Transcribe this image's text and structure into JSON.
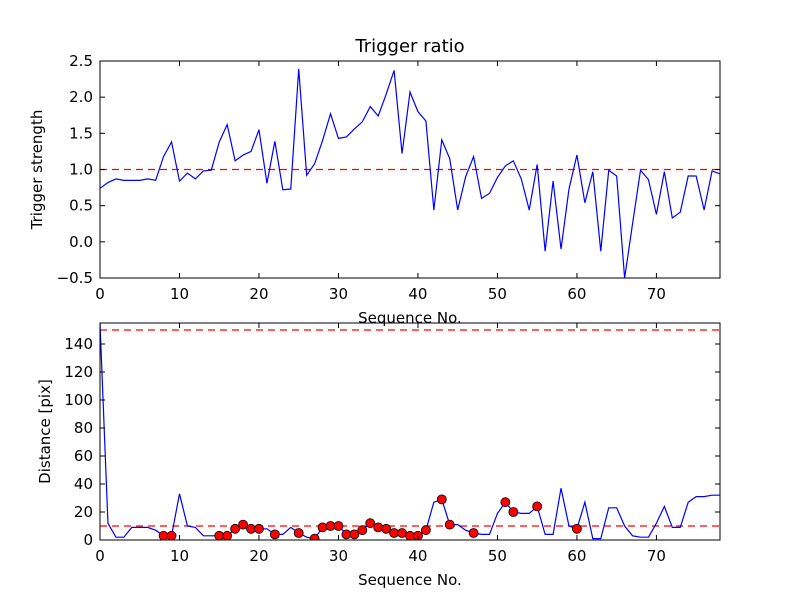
{
  "chart_data": [
    {
      "type": "line",
      "title": "Trigger ratio",
      "xlabel": "Sequence No.",
      "ylabel": "Trigger strength",
      "xlim": [
        0,
        78
      ],
      "ylim": [
        -0.5,
        2.5
      ],
      "xticks": [
        "0",
        "10",
        "20",
        "30",
        "40",
        "50",
        "60",
        "70"
      ],
      "yticks": [
        "2.5",
        "2.0",
        "1.5",
        "1.0",
        "0.5",
        "0.0",
        "−0.5"
      ],
      "threshold": 1.0,
      "colors": {
        "line": "#0000ff",
        "threshold": "#ff0000"
      },
      "series": [
        {
          "x": [
            0,
            1,
            2,
            3,
            4,
            5,
            6,
            7,
            8,
            9,
            10,
            11,
            12,
            13,
            14,
            15,
            16,
            17,
            18,
            19,
            20,
            21,
            22,
            23,
            24,
            25,
            26,
            27,
            28,
            29,
            30,
            31,
            32,
            33,
            34,
            35,
            36,
            37,
            38,
            39,
            40,
            41,
            42,
            43,
            44,
            45,
            46,
            47,
            48,
            49,
            50,
            51,
            52,
            53,
            54,
            55,
            56,
            57,
            58,
            59,
            60,
            61,
            62,
            63,
            64,
            65,
            66,
            67,
            68,
            69,
            70,
            71,
            72,
            73,
            74,
            75,
            76,
            77,
            78
          ],
          "y": [
            0.74,
            0.82,
            0.87,
            0.85,
            0.85,
            0.85,
            0.87,
            0.85,
            1.18,
            1.38,
            0.84,
            0.95,
            0.87,
            0.98,
            0.99,
            1.38,
            1.62,
            1.12,
            1.2,
            1.25,
            1.55,
            0.81,
            1.39,
            0.72,
            0.73,
            2.39,
            0.92,
            1.08,
            1.4,
            1.77,
            1.43,
            1.45,
            1.56,
            1.66,
            1.87,
            1.74,
            2.04,
            2.37,
            1.22,
            2.07,
            1.8,
            1.67,
            0.44,
            1.41,
            1.15,
            0.44,
            0.9,
            1.18,
            0.6,
            0.67,
            0.89,
            1.05,
            1.12,
            0.87,
            0.44,
            1.07,
            -0.13,
            0.84,
            -0.1,
            0.73,
            1.2,
            0.54,
            0.97,
            -0.13,
            0.99,
            0.91,
            -0.5,
            0.25,
            0.99,
            0.86,
            0.38,
            0.97,
            0.33,
            0.41,
            0.91,
            0.91,
            0.44,
            0.98,
            0.94
          ]
        }
      ]
    },
    {
      "type": "line",
      "title": "",
      "xlabel": "Sequence No.",
      "ylabel": "Distance [pix]",
      "xlim": [
        0,
        78
      ],
      "ylim": [
        0,
        155
      ],
      "xticks": [
        "0",
        "10",
        "20",
        "30",
        "40",
        "50",
        "60",
        "70"
      ],
      "yticks": [
        "140",
        "120",
        "100",
        "80",
        "60",
        "40",
        "20",
        "0"
      ],
      "thresholds": [
        150,
        10
      ],
      "colors": {
        "line": "#0000ff",
        "threshold": "#ff0000",
        "marker": "#ff0000"
      },
      "series": [
        {
          "x": [
            0,
            1,
            2,
            3,
            4,
            5,
            6,
            7,
            8,
            9,
            10,
            11,
            12,
            13,
            14,
            15,
            16,
            17,
            18,
            19,
            20,
            21,
            22,
            23,
            24,
            25,
            26,
            27,
            28,
            29,
            30,
            31,
            32,
            33,
            34,
            35,
            36,
            37,
            38,
            39,
            40,
            41,
            42,
            43,
            44,
            45,
            46,
            47,
            48,
            49,
            50,
            51,
            52,
            53,
            54,
            55,
            56,
            57,
            58,
            59,
            60,
            61,
            62,
            63,
            64,
            65,
            66,
            67,
            68,
            69,
            70,
            71,
            72,
            73,
            74,
            75,
            76,
            77,
            78
          ],
          "y": [
            155,
            12,
            2,
            2,
            9,
            9,
            9,
            7,
            3,
            3,
            33,
            10,
            9,
            3,
            3,
            3,
            3,
            8,
            11,
            8,
            8,
            8,
            4,
            4,
            9,
            5,
            2,
            1,
            9,
            10,
            10,
            4,
            4,
            7,
            12,
            9,
            8,
            5,
            5,
            3,
            3,
            7,
            27,
            29,
            11,
            11,
            7,
            5,
            4,
            4,
            19,
            27,
            20,
            19,
            19,
            24,
            4,
            4,
            37,
            10,
            8,
            27,
            1,
            1,
            23,
            23,
            10,
            3,
            2,
            2,
            12,
            24,
            9,
            9,
            27,
            31,
            31,
            32,
            32
          ]
        },
        {
          "name": "",
          "marker": "circle",
          "x": [
            8,
            9,
            15,
            16,
            17,
            18,
            19,
            20,
            22,
            25,
            27,
            28,
            29,
            30,
            31,
            32,
            33,
            34,
            35,
            36,
            37,
            38,
            39,
            40,
            41,
            43,
            44,
            47,
            51,
            52,
            55,
            60
          ],
          "y": [
            3,
            3,
            3,
            3,
            8,
            11,
            8,
            8,
            4,
            5,
            1,
            9,
            10,
            10,
            4,
            4,
            7,
            12,
            9,
            8,
            5,
            5,
            3,
            3,
            7,
            29,
            11,
            5,
            27,
            20,
            24,
            8
          ]
        }
      ]
    }
  ]
}
